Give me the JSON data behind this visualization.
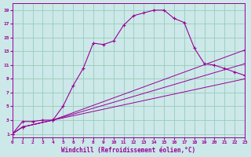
{
  "background_color": "#cce8e8",
  "grid_color": "#99ccbb",
  "line_color": "#990099",
  "xlabel": "Windchill (Refroidissement éolien,°C)",
  "ylabel_ticks": [
    1,
    3,
    5,
    7,
    9,
    11,
    13,
    15,
    17,
    19
  ],
  "xlabel_ticks": [
    0,
    1,
    2,
    3,
    4,
    5,
    6,
    7,
    8,
    9,
    10,
    11,
    12,
    13,
    14,
    15,
    16,
    17,
    18,
    19,
    20,
    21,
    22,
    23
  ],
  "xlim": [
    0,
    23
  ],
  "ylim": [
    0.5,
    20
  ],
  "line1": {
    "x": [
      0,
      1,
      2,
      3,
      4,
      5,
      6,
      7,
      8,
      9,
      10,
      11,
      12,
      13,
      14,
      15,
      16,
      17,
      18,
      19,
      20,
      21,
      22,
      23
    ],
    "y": [
      1,
      2.8,
      2.8,
      3.0,
      3.0,
      5.0,
      8.0,
      10.5,
      14.2,
      14.0,
      14.5,
      16.8,
      18.2,
      18.6,
      19.0,
      19.0,
      17.8,
      17.2,
      13.5,
      11.2,
      11.0,
      10.5,
      10.0,
      9.5
    ]
  },
  "line2": {
    "x": [
      0,
      1,
      4,
      23
    ],
    "y": [
      1,
      2.0,
      3.0,
      13.2
    ]
  },
  "line3": {
    "x": [
      0,
      1,
      4,
      23
    ],
    "y": [
      1,
      2.0,
      3.0,
      11.2
    ]
  },
  "line4": {
    "x": [
      0,
      1,
      4,
      23
    ],
    "y": [
      1,
      2.0,
      3.0,
      9.0
    ]
  }
}
